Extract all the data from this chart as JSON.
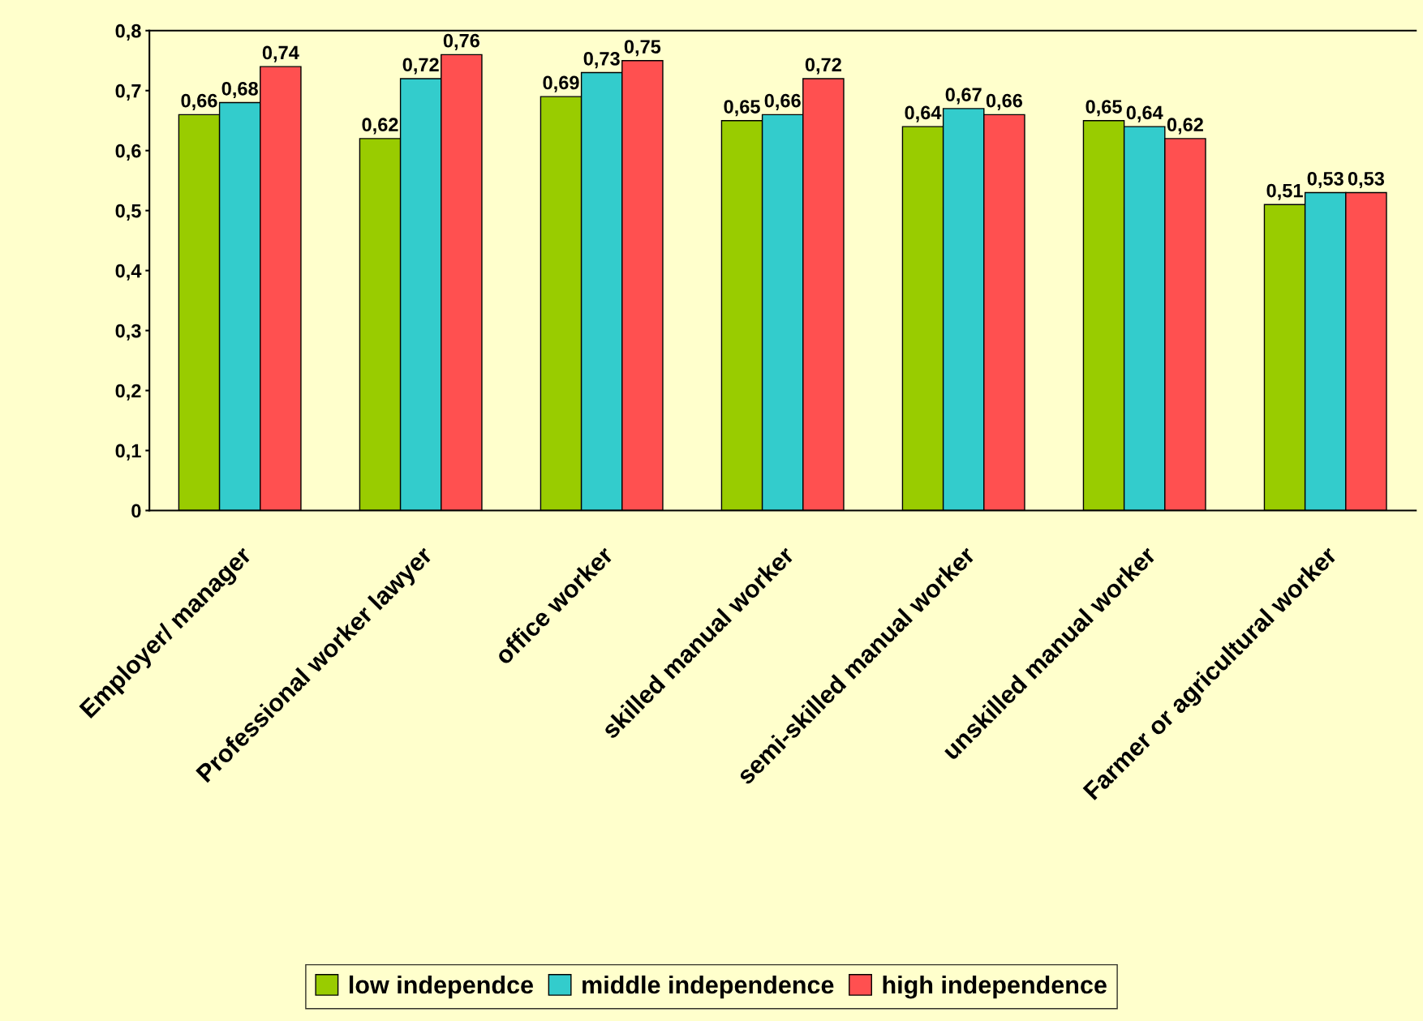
{
  "chart_data": {
    "type": "bar",
    "categories": [
      "Employer/ manager",
      "Professional worker lawyer",
      "office worker",
      "skilled manual worker",
      "semi-skilled manual worker",
      "unskilled manual worker",
      "Farmer or agricultural worker"
    ],
    "series": [
      {
        "name": "low independce",
        "color": "#99cc00",
        "values": [
          0.66,
          0.62,
          0.69,
          0.65,
          0.64,
          0.65,
          0.51
        ],
        "value_labels": [
          "0,66",
          "0,62",
          "0,69",
          "0,65",
          "0,64",
          "0,65",
          "0,51"
        ]
      },
      {
        "name": "middle independence",
        "color": "#33cccc",
        "values": [
          0.68,
          0.72,
          0.73,
          0.66,
          0.67,
          0.64,
          0.53
        ],
        "value_labels": [
          "0,68",
          "0,72",
          "0,73",
          "0,66",
          "0,67",
          "0,64",
          "0,53"
        ]
      },
      {
        "name": "high independence",
        "color": "#ff5050",
        "values": [
          0.74,
          0.76,
          0.75,
          0.72,
          0.66,
          0.62,
          0.53
        ],
        "value_labels": [
          "0,74",
          "0,76",
          "0,75",
          "0,72",
          "0,66",
          "0,62",
          "0,53"
        ]
      }
    ],
    "ylim": [
      0,
      0.8
    ],
    "yticks": [
      {
        "value": 0,
        "label": "0"
      },
      {
        "value": 0.1,
        "label": "0,1"
      },
      {
        "value": 0.2,
        "label": "0,2"
      },
      {
        "value": 0.3,
        "label": "0,3"
      },
      {
        "value": 0.4,
        "label": "0,4"
      },
      {
        "value": 0.5,
        "label": "0,5"
      },
      {
        "value": 0.6,
        "label": "0,6"
      },
      {
        "value": 0.7,
        "label": "0,7"
      },
      {
        "value": 0.8,
        "label": "0,8"
      }
    ],
    "grid": false,
    "legend": "bottom"
  }
}
